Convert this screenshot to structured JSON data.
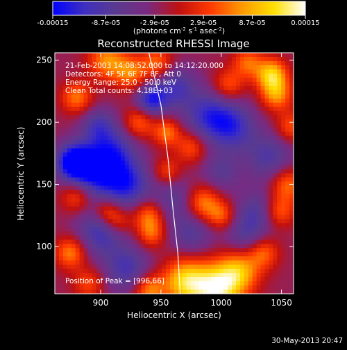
{
  "colorbar": {
    "tick_labels": [
      "-0.00015",
      "-8.7e-05",
      "-2.9e-05",
      "2.9e-05",
      "8.7e-05",
      "0.00015"
    ],
    "tick_values": [
      -0.00015,
      -8.7e-05,
      -2.9e-05,
      2.9e-05,
      8.7e-05,
      0.00015
    ],
    "range": [
      -0.00015,
      0.00015
    ],
    "unit_text": "(photons cm",
    "unit_sup1": "-2",
    "unit_mid": " s",
    "unit_sup2": "-1",
    "unit_tail": " asec",
    "unit_sup3": "-2",
    "unit_close": ")",
    "colors": [
      "#0000ff",
      "#3f2fc0",
      "#5a3a90",
      "#7a2a80",
      "#c01010",
      "#ff3a00",
      "#ff9a00",
      "#ffe000",
      "#ffffff"
    ]
  },
  "chart_data": {
    "type": "heatmap",
    "title": "Reconstructed RHESSI Image",
    "xlabel": "Heliocentric X (arcsec)",
    "ylabel": "Heliocentric Y (arcsec)",
    "xlim": [
      862,
      1060
    ],
    "ylim": [
      62,
      256
    ],
    "xticks": [
      900,
      950,
      1000,
      1050
    ],
    "yticks": [
      100,
      150,
      200,
      250
    ],
    "annotations": [
      "21-Feb-2003 14:08:52.000 to 14:12:20.000",
      "Detectors: 4F 5F 6F 7F 8F, Att 0",
      "Energy Range: 25.0 - 50.0 keV",
      "Clean    Total counts: 4.18E+03"
    ],
    "peak_label": "Position of Peak = [996,66]",
    "peak_position": [
      996,
      66
    ],
    "limb_curve": [
      [
        940,
        256
      ],
      [
        950,
        214
      ],
      [
        956,
        170
      ],
      [
        960,
        130
      ],
      [
        964,
        95
      ],
      [
        966,
        62
      ]
    ],
    "blobs": [
      {
        "x": 878,
        "y": 168,
        "v": -1.0,
        "r": 10
      },
      {
        "x": 896,
        "y": 160,
        "v": -0.75,
        "r": 14
      },
      {
        "x": 910,
        "y": 176,
        "v": -0.55,
        "r": 14
      },
      {
        "x": 922,
        "y": 150,
        "v": -0.65,
        "r": 13
      },
      {
        "x": 898,
        "y": 197,
        "v": -0.45,
        "r": 10
      },
      {
        "x": 942,
        "y": 218,
        "v": -0.7,
        "r": 9
      },
      {
        "x": 962,
        "y": 228,
        "v": -0.5,
        "r": 12
      },
      {
        "x": 990,
        "y": 205,
        "v": -0.6,
        "r": 14
      },
      {
        "x": 1010,
        "y": 196,
        "v": -0.55,
        "r": 13
      },
      {
        "x": 1040,
        "y": 172,
        "v": -0.45,
        "r": 14
      },
      {
        "x": 1030,
        "y": 128,
        "v": -0.4,
        "r": 12
      },
      {
        "x": 1020,
        "y": 108,
        "v": -0.35,
        "r": 12
      },
      {
        "x": 900,
        "y": 112,
        "v": -0.55,
        "r": 14
      },
      {
        "x": 922,
        "y": 82,
        "v": -0.5,
        "r": 13
      },
      {
        "x": 960,
        "y": 138,
        "v": -0.35,
        "r": 13
      },
      {
        "x": 975,
        "y": 110,
        "v": -0.4,
        "r": 12
      },
      {
        "x": 1000,
        "y": 160,
        "v": -0.35,
        "r": 11
      },
      {
        "x": 996,
        "y": 66,
        "v": 1.0,
        "r": 14
      },
      {
        "x": 970,
        "y": 72,
        "v": 0.85,
        "r": 13
      },
      {
        "x": 1015,
        "y": 80,
        "v": 0.7,
        "r": 12
      },
      {
        "x": 1042,
        "y": 238,
        "v": 0.85,
        "r": 9
      },
      {
        "x": 1046,
        "y": 222,
        "v": 0.6,
        "r": 9
      },
      {
        "x": 1022,
        "y": 248,
        "v": 0.5,
        "r": 9
      },
      {
        "x": 1006,
        "y": 230,
        "v": 0.45,
        "r": 9
      },
      {
        "x": 905,
        "y": 250,
        "v": 0.6,
        "r": 11
      },
      {
        "x": 925,
        "y": 240,
        "v": 0.55,
        "r": 10
      },
      {
        "x": 947,
        "y": 248,
        "v": 0.5,
        "r": 9
      },
      {
        "x": 880,
        "y": 220,
        "v": 0.55,
        "r": 9
      },
      {
        "x": 932,
        "y": 200,
        "v": 0.5,
        "r": 9
      },
      {
        "x": 955,
        "y": 192,
        "v": 0.55,
        "r": 8
      },
      {
        "x": 975,
        "y": 180,
        "v": 0.45,
        "r": 9
      },
      {
        "x": 1058,
        "y": 196,
        "v": 0.45,
        "r": 9
      },
      {
        "x": 1055,
        "y": 150,
        "v": 0.55,
        "r": 10
      },
      {
        "x": 1048,
        "y": 128,
        "v": 0.5,
        "r": 9
      },
      {
        "x": 1035,
        "y": 95,
        "v": 0.5,
        "r": 9
      },
      {
        "x": 985,
        "y": 135,
        "v": 0.6,
        "r": 10
      },
      {
        "x": 1000,
        "y": 125,
        "v": 0.45,
        "r": 8
      },
      {
        "x": 940,
        "y": 125,
        "v": 0.55,
        "r": 9
      },
      {
        "x": 915,
        "y": 120,
        "v": 0.4,
        "r": 8
      },
      {
        "x": 905,
        "y": 128,
        "v": 0.5,
        "r": 8
      },
      {
        "x": 875,
        "y": 95,
        "v": 0.6,
        "r": 9
      },
      {
        "x": 942,
        "y": 110,
        "v": 0.45,
        "r": 8
      },
      {
        "x": 880,
        "y": 140,
        "v": 0.45,
        "r": 9
      },
      {
        "x": 955,
        "y": 160,
        "v": 0.4,
        "r": 8
      },
      {
        "x": 940,
        "y": 65,
        "v": 0.6,
        "r": 9
      },
      {
        "x": 890,
        "y": 70,
        "v": 0.4,
        "r": 9
      }
    ]
  },
  "footer": {
    "date": "30-May-2013 20:47"
  }
}
